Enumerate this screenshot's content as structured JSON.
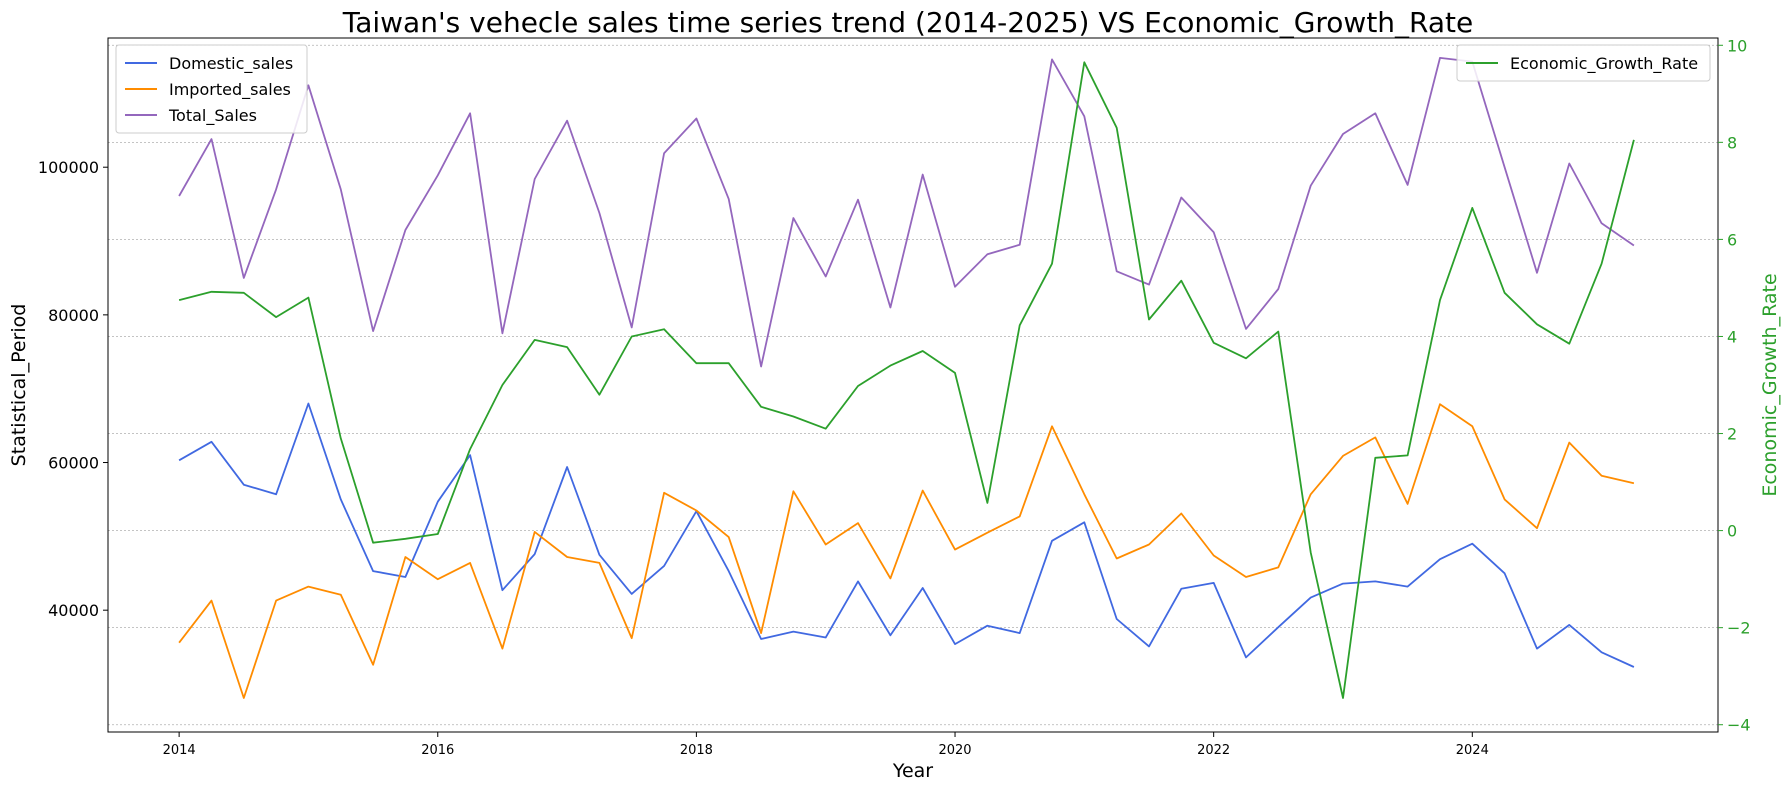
{
  "chart_data": {
    "type": "line",
    "title": "Taiwan's vehecle sales time series trend (2014-2025) VS Economic_Growth_Rate",
    "xlabel": "Year",
    "ylabel": "Statistical_Period",
    "y2label": "Economic_Growth_Rate",
    "xlim": [
      2013.45,
      2025.9
    ],
    "ylim": [
      23500,
      117500
    ],
    "y2lim": [
      -4.15,
      10.15
    ],
    "x_ticks": [
      2014,
      2016,
      2018,
      2020,
      2022,
      2024
    ],
    "y_ticks": [
      40000,
      60000,
      80000,
      100000
    ],
    "y2_ticks": [
      -4,
      -2,
      0,
      2,
      4,
      6,
      8,
      10
    ],
    "y2_tick_labels": [
      "−4",
      "−2",
      "0",
      "2",
      "4",
      "6",
      "8",
      "10"
    ],
    "grid": "horizontal dotted",
    "legend_left_position": "top-left",
    "legend_right_position": "top-right",
    "axis2_color": "#2ca02c",
    "x": [
      2014.0,
      2014.25,
      2014.5,
      2014.75,
      2015.0,
      2015.25,
      2015.5,
      2015.75,
      2016.0,
      2016.25,
      2016.5,
      2016.75,
      2017.0,
      2017.25,
      2017.5,
      2017.75,
      2018.0,
      2018.25,
      2018.5,
      2018.75,
      2019.0,
      2019.25,
      2019.5,
      2019.75,
      2020.0,
      2020.25,
      2020.5,
      2020.75,
      2021.0,
      2021.25,
      2021.5,
      2021.75,
      2022.0,
      2022.25,
      2022.5,
      2022.75,
      2023.0,
      2023.25,
      2023.5,
      2023.75,
      2024.0,
      2024.25,
      2024.5,
      2024.75,
      2025.0,
      2025.25
    ],
    "series": [
      {
        "name": "Domestic_sales",
        "axis": "left",
        "color": "#4169e1",
        "values": [
          60300,
          62800,
          57000,
          55700,
          68000,
          55000,
          45300,
          44500,
          54700,
          61000,
          42700,
          47600,
          59400,
          47500,
          42200,
          46000,
          53400,
          45300,
          36100,
          37100,
          36300,
          43900,
          36600,
          43000,
          35400,
          37900,
          36900,
          49400,
          51900,
          38800,
          35100,
          42900,
          43700,
          33600,
          37700,
          41700,
          43600,
          43900,
          43200,
          46900,
          49000,
          45000,
          34800,
          38000,
          34300,
          32300
        ]
      },
      {
        "name": "Imported_sales",
        "axis": "left",
        "color": "#ff8c00",
        "values": [
          35600,
          41300,
          28100,
          41300,
          43200,
          42100,
          32600,
          47200,
          44200,
          46400,
          34800,
          50600,
          47200,
          46400,
          36200,
          55900,
          53500,
          49900,
          36900,
          56100,
          48900,
          51800,
          44300,
          56200,
          48200,
          50500,
          52700,
          64900,
          55700,
          47000,
          48900,
          53100,
          47400,
          44500,
          45800,
          55700,
          60900,
          63400,
          54400,
          67900,
          64900,
          55000,
          51100,
          62700,
          58200,
          57200
        ]
      },
      {
        "name": "Total_Sales",
        "axis": "left",
        "color": "#9467bd",
        "values": [
          96100,
          103800,
          85000,
          97000,
          111100,
          97000,
          77800,
          91500,
          98900,
          107300,
          77500,
          98400,
          106300,
          93800,
          78300,
          101900,
          106600,
          95700,
          73000,
          93100,
          85200,
          95600,
          81000,
          99000,
          83800,
          88200,
          89500,
          114600,
          106900,
          85900,
          84100,
          95900,
          91200,
          78100,
          83500,
          97500,
          104500,
          107300,
          97600,
          114800,
          114300,
          100000,
          85700,
          100500,
          92400,
          89400
        ]
      },
      {
        "name": "Economic_Growth_Rate",
        "axis": "right",
        "color": "#2ca02c",
        "values": [
          4.75,
          4.92,
          4.9,
          4.4,
          4.8,
          1.9,
          -0.25,
          -0.17,
          -0.07,
          1.68,
          3.0,
          3.93,
          3.78,
          2.8,
          4.0,
          4.15,
          3.45,
          3.45,
          2.55,
          2.35,
          2.1,
          2.98,
          3.4,
          3.7,
          3.25,
          0.57,
          4.23,
          5.5,
          9.65,
          8.3,
          4.35,
          5.15,
          3.87,
          3.55,
          4.1,
          -0.45,
          -3.45,
          1.5,
          1.55,
          4.75,
          6.65,
          4.9,
          4.25,
          3.85,
          5.5,
          8.05
        ]
      }
    ]
  }
}
